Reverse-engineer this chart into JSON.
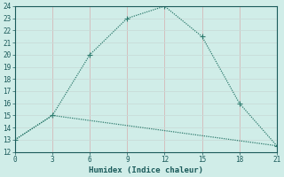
{
  "xlabel": "Humidex (Indice chaleur)",
  "line1_x": [
    0,
    3,
    6,
    9,
    12,
    15,
    18,
    21
  ],
  "line1_y": [
    13,
    15,
    20,
    23,
    24,
    21.5,
    16,
    12.5
  ],
  "line2_x": [
    0,
    3,
    21
  ],
  "line2_y": [
    13,
    15,
    12.5
  ],
  "line_color": "#2e7b6e",
  "bg_color": "#d0ede8",
  "hgrid_color": "#c8dcd8",
  "vgrid_color": "#d4b8b8",
  "ylim": [
    12,
    24
  ],
  "xlim": [
    0,
    21
  ],
  "yticks": [
    12,
    13,
    14,
    15,
    16,
    17,
    18,
    19,
    20,
    21,
    22,
    23,
    24
  ],
  "xticks": [
    0,
    3,
    6,
    9,
    12,
    15,
    18,
    21
  ],
  "markersize": 4,
  "linewidth": 0.9,
  "font_color": "#1a5a5a",
  "tick_fontsize": 5.5,
  "label_fontsize": 6.5
}
